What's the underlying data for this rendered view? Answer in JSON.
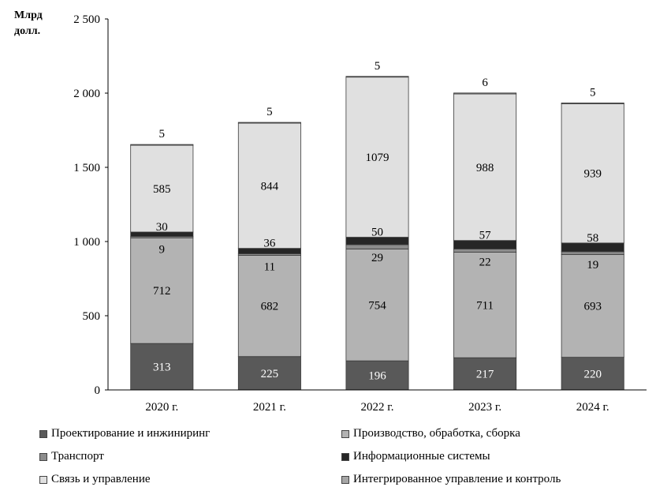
{
  "chart_data": {
    "type": "bar",
    "stacked": true,
    "title": "",
    "ylabel": "Млрд\nдолл.",
    "xlabel": "",
    "ylim": [
      0,
      2500
    ],
    "yticks": [
      0,
      500,
      1000,
      1500,
      2000,
      2500
    ],
    "ytick_labels": [
      "0",
      "500",
      "1 000",
      "1 500",
      "2 000",
      "2 500"
    ],
    "categories": [
      "2020 г.",
      "2021 г.",
      "2022 г.",
      "2023 г.",
      "2024 г."
    ],
    "grid": false,
    "legend_position": "bottom",
    "series": [
      {
        "name": "Проектирование и инжиниринг",
        "color": "#595959",
        "values": [
          313,
          225,
          196,
          217,
          220
        ],
        "label_color": "#ffffff"
      },
      {
        "name": "Производство, обработка, сборка",
        "color": "#b3b3b3",
        "values": [
          712,
          682,
          754,
          711,
          693
        ],
        "label_color": "#000000"
      },
      {
        "name": "Транспорт",
        "color": "#8c8c8c",
        "values": [
          9,
          11,
          29,
          22,
          19
        ],
        "label_color": "#000000"
      },
      {
        "name": "Информационные системы",
        "color": "#262626",
        "values": [
          30,
          36,
          50,
          57,
          58
        ],
        "label_color": "#000000"
      },
      {
        "name": "Связь и управление",
        "color": "#e0e0e0",
        "values": [
          585,
          844,
          1079,
          988,
          939
        ],
        "label_color": "#000000"
      },
      {
        "name": "Интегрированное управление и контроль",
        "color": "#a6a6a6",
        "values": [
          5,
          5,
          5,
          6,
          5
        ],
        "label_color": "#000000"
      }
    ],
    "legend_order": [
      0,
      1,
      2,
      3,
      4,
      5
    ]
  }
}
